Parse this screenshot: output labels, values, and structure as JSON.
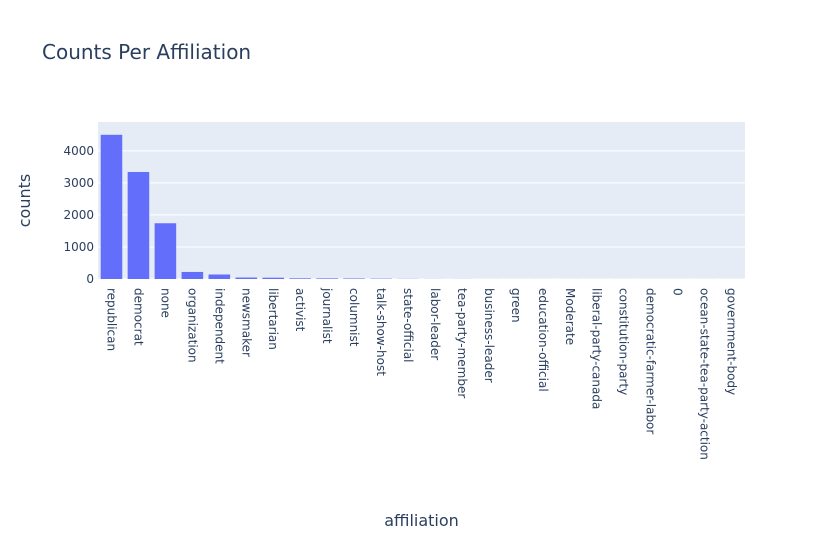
{
  "chart_data": {
    "type": "bar",
    "title": "Counts Per Affiliation",
    "xlabel": "affiliation",
    "ylabel": "counts",
    "ylim": [
      0,
      4900
    ],
    "yticks": [
      0,
      1000,
      2000,
      3000,
      4000
    ],
    "grid": true,
    "categories": [
      "republican",
      "democrat",
      "none",
      "organization",
      "independent",
      "newsmaker",
      "libertarian",
      "activist",
      "journalist",
      "columnist",
      "talk-show-host",
      "state-official",
      "labor-leader",
      "tea-party-member",
      "business-leader",
      "green",
      "education-official",
      "Moderate",
      "liberal-party-canada",
      "constitution-party",
      "democratic-farmer-labor",
      "0",
      "ocean-state-tea-party-action",
      "government-body"
    ],
    "values": [
      4500,
      3340,
      1740,
      220,
      140,
      45,
      40,
      20,
      18,
      15,
      10,
      5,
      2,
      2,
      1,
      1,
      1,
      1,
      1,
      1,
      1,
      1,
      1,
      1
    ],
    "colors": {
      "bar": "#636efa",
      "plot_bg": "#e5ecf6",
      "grid": "#ffffff",
      "text": "#2a3f5f"
    }
  }
}
